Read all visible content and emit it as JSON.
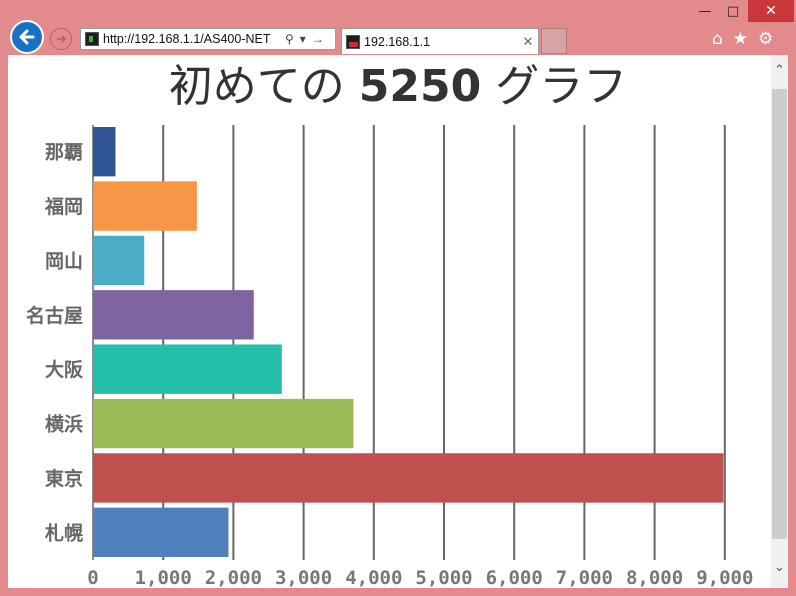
{
  "browser": {
    "address": "http://192.168.1.1/AS400-NET",
    "tab_title": "192.168.1.1",
    "icons": [
      "back-arrow-icon",
      "forward-arrow-icon",
      "search-icon",
      "dropdown-icon",
      "go-arrow-icon",
      "close-icon",
      "home-icon",
      "star-icon",
      "gear-icon"
    ]
  },
  "title": {
    "pre": "初めての",
    "bold": "5250",
    "post": "グラフ"
  },
  "chart_data": {
    "type": "bar",
    "orientation": "horizontal",
    "categories": [
      "那覇",
      "福岡",
      "岡山",
      "名古屋",
      "大阪",
      "横浜",
      "東京",
      "札幌"
    ],
    "values": [
      320,
      1480,
      730,
      2290,
      2690,
      3710,
      8980,
      1930
    ],
    "colors": [
      "#2f5597",
      "#f79646",
      "#4bacc6",
      "#8064a2",
      "#23bfaa",
      "#9bbb59",
      "#c0504d",
      "#4f81bd"
    ],
    "xlim": [
      0,
      9000
    ],
    "xticks": [
      "0",
      "1,000",
      "2,000",
      "3,000",
      "4,000",
      "5,000",
      "6,000",
      "7,000",
      "8,000",
      "9,000"
    ],
    "grid": true
  }
}
